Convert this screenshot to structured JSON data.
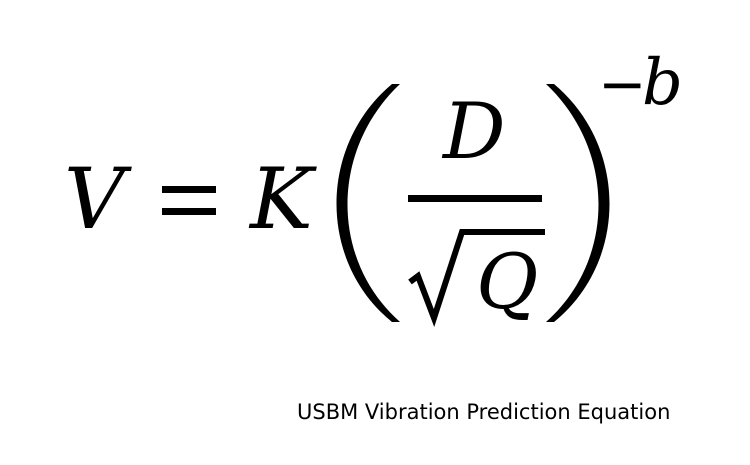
{
  "equation": {
    "lhs": "V",
    "equals": "=",
    "coefficient": "K",
    "numerator": "D",
    "denominator": "Q",
    "exponent_sign": "−",
    "exponent": "b"
  },
  "caption": "USBM Vibration Prediction Equation",
  "colors": {
    "text": "#000000",
    "background": "#ffffff"
  }
}
